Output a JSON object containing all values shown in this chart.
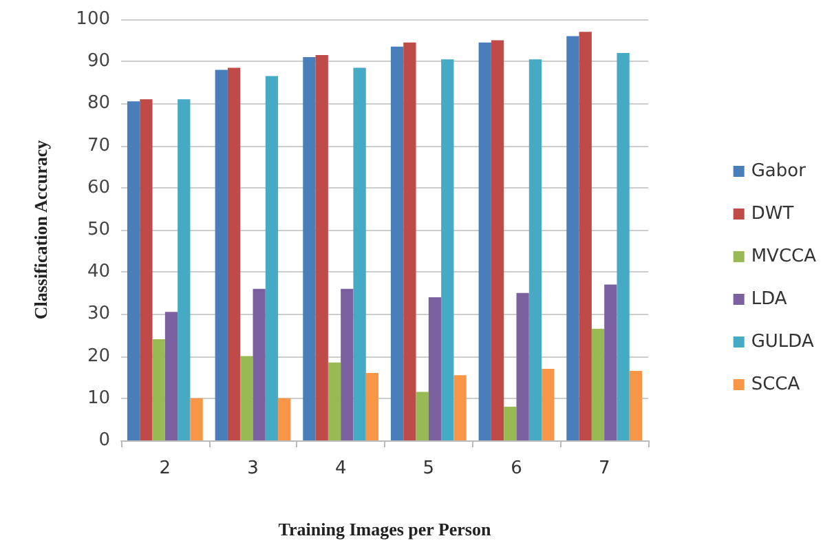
{
  "chart_data": {
    "type": "bar",
    "xlabel": "Training Images per Person",
    "ylabel": "Classification Accuracy",
    "categories": [
      "2",
      "3",
      "4",
      "5",
      "6",
      "7"
    ],
    "series": [
      {
        "name": "Gabor",
        "color": "#4a7ebb",
        "values": [
          80.5,
          88,
          91,
          93.5,
          94.5,
          96
        ]
      },
      {
        "name": "DWT",
        "color": "#be4b48",
        "values": [
          81,
          88.5,
          91.5,
          94.5,
          95,
          97
        ]
      },
      {
        "name": "MVCCA",
        "color": "#98b954",
        "values": [
          24,
          20,
          18.5,
          11.5,
          8,
          26.5
        ]
      },
      {
        "name": "LDA",
        "color": "#7d60a0",
        "values": [
          30.5,
          36,
          36,
          34,
          35,
          37
        ]
      },
      {
        "name": "GULDA",
        "color": "#46aac5",
        "values": [
          81,
          86.5,
          88.5,
          90.5,
          90.5,
          92
        ]
      },
      {
        "name": "SCCA",
        "color": "#f79646",
        "values": [
          10,
          10,
          16,
          15.5,
          17,
          16.5
        ]
      }
    ],
    "ylim": [
      0,
      100
    ],
    "yticks": [
      0,
      10,
      20,
      30,
      40,
      50,
      60,
      70,
      80,
      90,
      100
    ],
    "grid": "y",
    "legend": "right"
  }
}
